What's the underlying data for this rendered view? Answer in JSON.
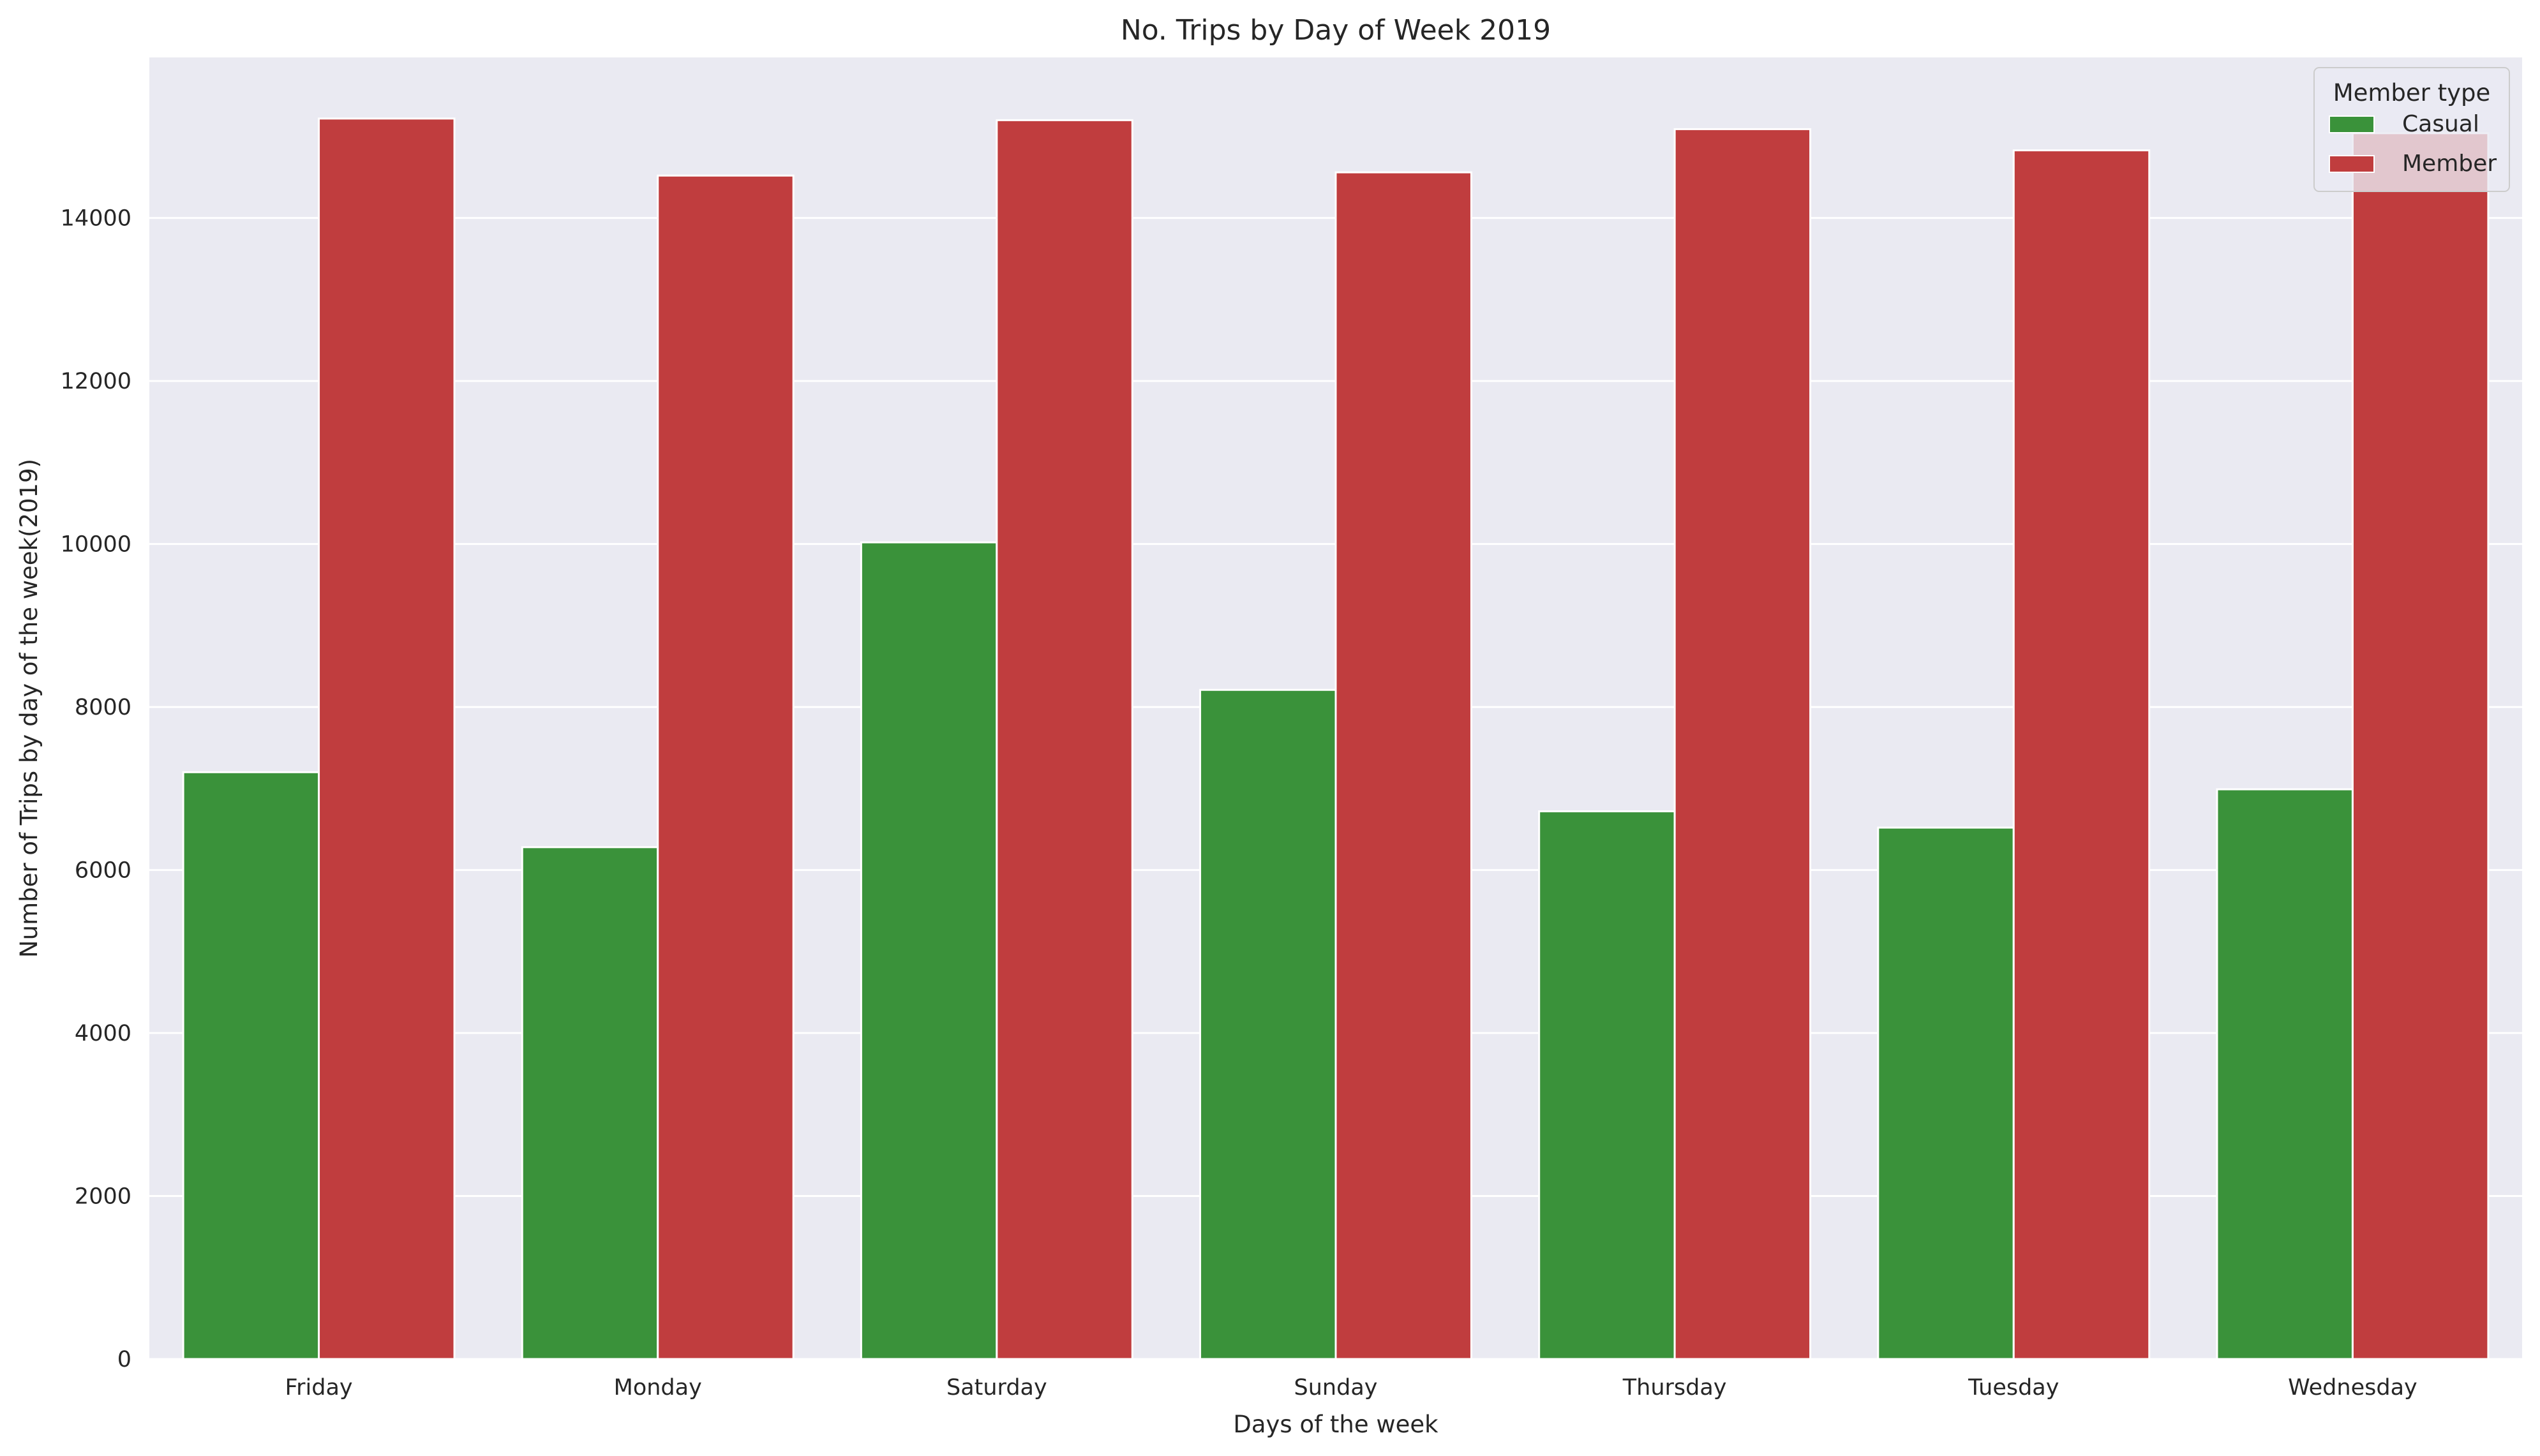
{
  "chart_data": {
    "type": "bar",
    "title": "No. Trips by Day of Week 2019",
    "xlabel": "Days of the week",
    "ylabel": "Number of Trips by day of the week(2019)",
    "categories": [
      "Friday",
      "Monday",
      "Saturday",
      "Sunday",
      "Thursday",
      "Tuesday",
      "Wednesday"
    ],
    "series": [
      {
        "name": "Casual",
        "color": "#3a923a",
        "values": [
          7200,
          6280,
          10020,
          8210,
          6720,
          6520,
          6990
        ]
      },
      {
        "name": "Member",
        "color": "#c03d3e",
        "values": [
          15220,
          14520,
          15200,
          14560,
          15090,
          14830,
          15040
        ]
      }
    ],
    "yticks": [
      0,
      2000,
      4000,
      6000,
      8000,
      10000,
      12000,
      14000
    ],
    "ylim": [
      0,
      15970
    ],
    "grid": true,
    "background_color": "#eaeaf2",
    "legend": {
      "title": "Member type",
      "placement": "top-right"
    }
  }
}
